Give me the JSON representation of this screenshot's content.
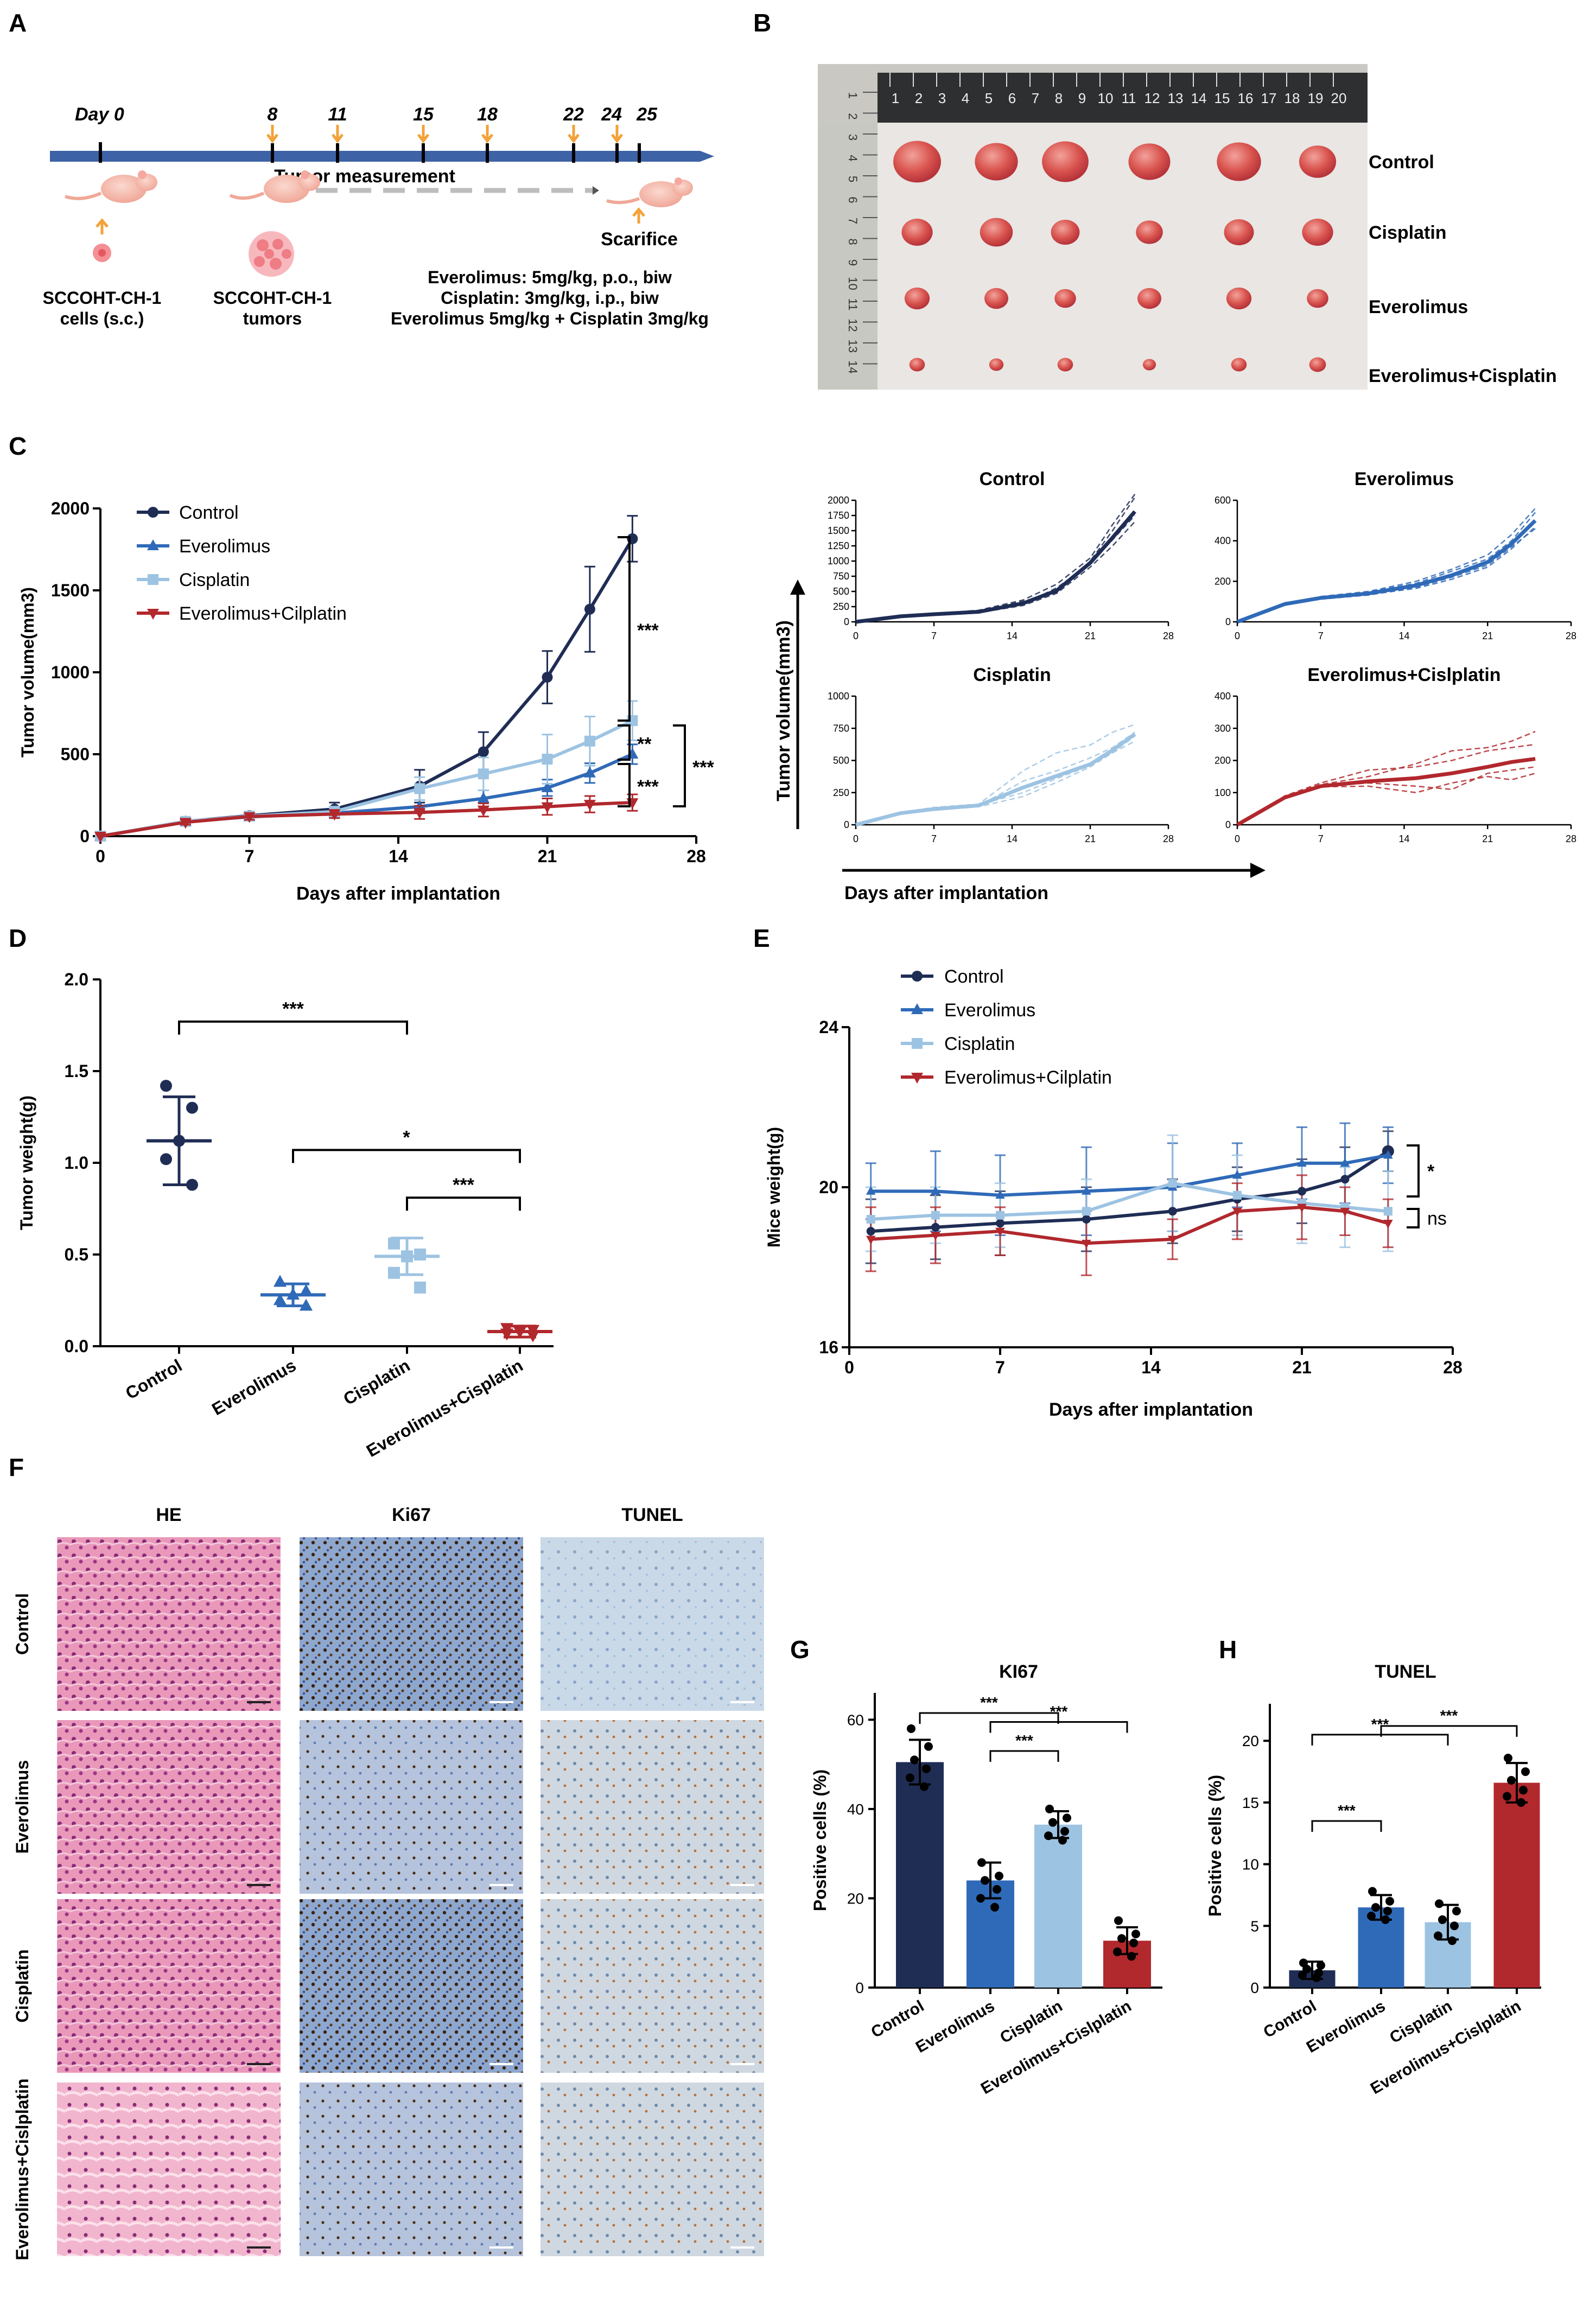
{
  "colors": {
    "control": "#1f2d55",
    "everolimus": "#2f6ab8",
    "cisplatin": "#9dc3e2",
    "combo": "#b1282d",
    "timeline": "#3d62a5",
    "arrow": "#f3a23a"
  },
  "panel_labels": [
    "A",
    "B",
    "C",
    "D",
    "E",
    "F",
    "G",
    "H"
  ],
  "panel_a": {
    "day_label": "Day 0",
    "days": [
      "8",
      "11",
      "15",
      "18",
      "22",
      "24",
      "25"
    ],
    "measure_label": "Tumor measurement",
    "sacrifice_label": "Scarifice",
    "cells_line1": "SCCOHT-CH-1",
    "cells_line2": "cells (s.c.)",
    "tumors_line1": "SCCOHT-CH-1",
    "tumors_line2": "tumors",
    "regimen": [
      "Everolimus: 5mg/kg, p.o., biw",
      "Cisplatin: 3mg/kg, i.p., biw",
      "Everolimus 5mg/kg + Cisplatin 3mg/kg"
    ]
  },
  "panel_b": {
    "rows": [
      "Control",
      "Cisplatin",
      "Everolimus",
      "Everolimus+Cisplatin"
    ],
    "ruler_top": [
      "1",
      "2",
      "3",
      "4",
      "5",
      "6",
      "7",
      "8",
      "9",
      "10",
      "11",
      "12",
      "13",
      "14",
      "15",
      "16",
      "17",
      "18",
      "19",
      "20"
    ],
    "ruler_side": [
      "1",
      "2",
      "3",
      "4",
      "5",
      "6",
      "7",
      "8",
      "9",
      "10",
      "11",
      "12",
      "13",
      "14"
    ],
    "tumor_sizes": [
      [
        0.8,
        0.72,
        0.78,
        0.7,
        0.74,
        0.62
      ],
      [
        0.52,
        0.55,
        0.48,
        0.45,
        0.5,
        0.52
      ],
      [
        0.42,
        0.4,
        0.36,
        0.4,
        0.42,
        0.36
      ],
      [
        0.26,
        0.24,
        0.26,
        0.22,
        0.26,
        0.28
      ]
    ]
  },
  "panel_f": {
    "columns": [
      "HE",
      "Ki67",
      "TUNEL"
    ],
    "rows": [
      "Control",
      "Everolimus",
      "Cisplatin",
      "Everolimus+Cislplatin"
    ]
  },
  "chart_data": [
    {
      "id": "C_main",
      "type": "line",
      "title": "",
      "xlabel": "Days after implantation",
      "ylabel": "Tumor volume(mm3)",
      "xlim": [
        0,
        28
      ],
      "ylim": [
        0,
        2000
      ],
      "xticks": [
        0,
        7,
        14,
        21,
        28
      ],
      "yticks": [
        0,
        500,
        1000,
        1500,
        2000
      ],
      "legend": [
        "Control",
        "Everolimus",
        "Cisplatin",
        "Everolimus+Cilplatin"
      ],
      "x": [
        0,
        4,
        7,
        11,
        15,
        18,
        21,
        23,
        25
      ],
      "series": [
        {
          "name": "Control",
          "values": [
            0,
            90,
            125,
            165,
            305,
            515,
            970,
            1385,
            1815
          ],
          "err": [
            0,
            15,
            20,
            40,
            100,
            120,
            160,
            260,
            140
          ]
        },
        {
          "name": "Everolimus",
          "values": [
            0,
            88,
            118,
            140,
            180,
            230,
            295,
            385,
            500
          ],
          "err": [
            0,
            15,
            20,
            20,
            40,
            50,
            50,
            60,
            60
          ]
        },
        {
          "name": "Cisplatin",
          "values": [
            0,
            90,
            122,
            150,
            290,
            380,
            470,
            580,
            705
          ],
          "err": [
            0,
            15,
            20,
            30,
            70,
            100,
            150,
            150,
            120
          ]
        },
        {
          "name": "Everolimus+Cilplatin",
          "values": [
            0,
            85,
            120,
            135,
            145,
            160,
            180,
            195,
            205
          ],
          "err": [
            0,
            15,
            20,
            25,
            40,
            40,
            50,
            50,
            50
          ]
        }
      ],
      "significance": [
        "***",
        "**",
        "***",
        "***"
      ]
    },
    {
      "id": "C_individual",
      "type": "line",
      "xlabel": "Days after implantation",
      "ylabel": "Tumor volume(mm3)",
      "panels": [
        {
          "title": "Control",
          "ylim": [
            0,
            2000
          ],
          "yticks": [
            0,
            250,
            500,
            750,
            1000,
            1250,
            1500,
            1750,
            2000
          ],
          "xticks": [
            0,
            7,
            14,
            21,
            28
          ],
          "x": [
            0,
            4,
            7,
            11,
            15,
            18,
            21,
            23,
            25
          ],
          "mean": [
            0,
            90,
            125,
            165,
            305,
            515,
            970,
            1385,
            1815
          ]
        },
        {
          "title": "Everolimus",
          "ylim": [
            0,
            600
          ],
          "yticks": [
            0,
            200,
            400,
            600
          ],
          "xticks": [
            0,
            7,
            14,
            21,
            28
          ],
          "x": [
            0,
            4,
            7,
            11,
            15,
            18,
            21,
            23,
            25
          ],
          "mean": [
            0,
            88,
            118,
            140,
            180,
            230,
            295,
            385,
            500
          ]
        },
        {
          "title": "Cisplatin",
          "ylim": [
            0,
            1000
          ],
          "yticks": [
            0,
            250,
            500,
            750,
            1000
          ],
          "xticks": [
            0,
            7,
            14,
            21,
            28
          ],
          "x": [
            0,
            4,
            7,
            11,
            15,
            18,
            21,
            23,
            25
          ],
          "mean": [
            0,
            90,
            122,
            150,
            290,
            380,
            470,
            580,
            705
          ]
        },
        {
          "title": "Everolimus+Cislplatin",
          "ylim": [
            0,
            400
          ],
          "yticks": [
            0,
            100,
            200,
            300,
            400
          ],
          "xticks": [
            0,
            7,
            14,
            21,
            28
          ],
          "x": [
            0,
            4,
            7,
            11,
            15,
            18,
            21,
            23,
            25
          ],
          "mean": [
            0,
            85,
            120,
            135,
            145,
            160,
            180,
            195,
            205
          ]
        }
      ]
    },
    {
      "id": "D",
      "type": "scatter",
      "ylabel": "Tumor weight(g)",
      "ylim": [
        0,
        2.0
      ],
      "yticks": [
        "0.0",
        "0.5",
        "1.0",
        "1.5",
        "2.0"
      ],
      "categories": [
        "Control",
        "Everolimus",
        "Cisplatin",
        "Everolimus+Cisplatin"
      ],
      "means": [
        1.12,
        0.28,
        0.49,
        0.08
      ],
      "sd": [
        0.24,
        0.06,
        0.1,
        0.03
      ],
      "points": [
        [
          1.42,
          1.3,
          1.12,
          1.02,
          0.88
        ],
        [
          0.35,
          0.3,
          0.28,
          0.25,
          0.22
        ],
        [
          0.56,
          0.5,
          0.49,
          0.4,
          0.32
        ],
        [
          0.1,
          0.09,
          0.08,
          0.07,
          0.06
        ]
      ],
      "significance": [
        {
          "from": "Control",
          "to": "Cisplatin",
          "label": "***"
        },
        {
          "from": "Everolimus",
          "to": "Everolimus+Cisplatin",
          "label": "*"
        },
        {
          "from": "Cisplatin",
          "to": "Everolimus+Cisplatin",
          "label": "***"
        }
      ]
    },
    {
      "id": "E",
      "type": "line",
      "xlabel": "Days after implantation",
      "ylabel": "Mice weight(g)",
      "xlim": [
        0,
        28
      ],
      "ylim": [
        16,
        24
      ],
      "xticks": [
        0,
        7,
        14,
        21,
        28
      ],
      "yticks": [
        16,
        20,
        24
      ],
      "legend": [
        "Control",
        "Everolimus",
        "Cisplatin",
        "Everolimus+Cilplatin"
      ],
      "x": [
        1,
        4,
        7,
        11,
        15,
        18,
        21,
        23,
        25
      ],
      "series": [
        {
          "name": "Control",
          "values": [
            18.9,
            19.0,
            19.1,
            19.2,
            19.4,
            19.7,
            19.9,
            20.2,
            20.9
          ],
          "err": [
            0.8,
            0.8,
            0.8,
            0.8,
            0.8,
            0.8,
            0.8,
            0.8,
            0.5
          ]
        },
        {
          "name": "Everolimus",
          "values": [
            19.9,
            19.9,
            19.8,
            19.9,
            20.0,
            20.3,
            20.6,
            20.6,
            20.8
          ],
          "err": [
            0.7,
            1.0,
            1.0,
            1.1,
            1.1,
            0.8,
            0.9,
            1.0,
            0.7
          ]
        },
        {
          "name": "Cisplatin",
          "values": [
            19.2,
            19.3,
            19.3,
            19.4,
            20.1,
            19.8,
            19.6,
            19.5,
            19.4
          ],
          "err": [
            0.8,
            0.7,
            0.8,
            0.8,
            1.2,
            1.0,
            1.0,
            1.0,
            1.0
          ]
        },
        {
          "name": "Everolimus+Cilplatin",
          "values": [
            18.7,
            18.8,
            18.9,
            18.6,
            18.7,
            19.4,
            19.5,
            19.4,
            19.1
          ],
          "err": [
            0.8,
            0.7,
            0.6,
            0.8,
            0.5,
            0.7,
            0.8,
            0.6,
            0.6
          ]
        }
      ],
      "significance": [
        "*",
        "ns"
      ]
    },
    {
      "id": "G",
      "type": "bar",
      "title": "KI67",
      "ylabel": "Positive cells (%)",
      "ylim": [
        0,
        66
      ],
      "yticks": [
        0,
        20,
        40,
        60
      ],
      "categories": [
        "Control",
        "Everolimus",
        "Cisplatin",
        "Everolimus+Cislplatin"
      ],
      "values": [
        50.5,
        24.0,
        36.5,
        10.5
      ],
      "sd": [
        5.0,
        4.0,
        3.0,
        3.0
      ],
      "points": [
        [
          58,
          54,
          51,
          49,
          47,
          45
        ],
        [
          28,
          25,
          24,
          22,
          20,
          18
        ],
        [
          40,
          38,
          37,
          35,
          34,
          33
        ],
        [
          15,
          12,
          11,
          10,
          8,
          7
        ]
      ],
      "significance": [
        {
          "from": "Control",
          "to": "Cisplatin",
          "label": "***"
        },
        {
          "from": "Everolimus",
          "to": "Everolimus+Cislplatin",
          "label": "***"
        },
        {
          "from": "Everolimus",
          "to": "Cisplatin",
          "label": "***"
        }
      ]
    },
    {
      "id": "H",
      "type": "bar",
      "title": "TUNEL",
      "ylabel": "Positive cells (%)",
      "ylim": [
        0,
        23
      ],
      "yticks": [
        0,
        5,
        10,
        15,
        20
      ],
      "categories": [
        "Control",
        "Everolimus",
        "Cisplatin",
        "Everolimus+Cislplatin"
      ],
      "values": [
        1.4,
        6.5,
        5.3,
        16.6
      ],
      "sd": [
        0.7,
        1.0,
        1.4,
        1.6
      ],
      "points": [
        [
          2.0,
          1.8,
          1.5,
          1.2,
          1.0,
          0.8
        ],
        [
          7.8,
          7.0,
          6.5,
          6.2,
          5.8,
          5.5
        ],
        [
          6.8,
          6.2,
          5.5,
          5.0,
          4.2,
          3.8
        ],
        [
          18.6,
          17.5,
          16.8,
          16.0,
          15.5,
          15.0
        ]
      ],
      "significance": [
        {
          "from": "Control",
          "to": "Everolimus",
          "label": "***"
        },
        {
          "from": "Control",
          "to": "Cisplatin",
          "label": "***"
        },
        {
          "from": "Everolimus",
          "to": "Everolimus+Cislplatin",
          "label": "***"
        }
      ]
    }
  ]
}
